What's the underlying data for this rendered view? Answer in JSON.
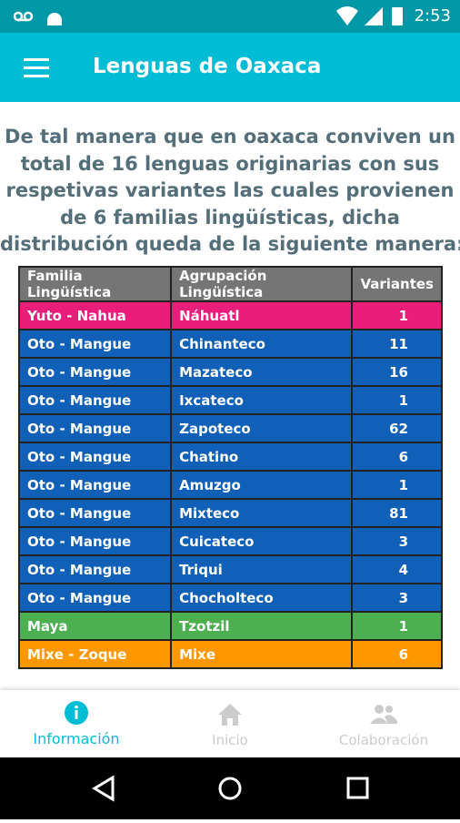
{
  "status_bar": {
    "time": "2:53"
  },
  "app_bar": {
    "title": "Lenguas de Oaxaca"
  },
  "intro": {
    "lines": [
      "De tal manera que en oaxaca conviven un",
      "total de 16 lenguas originarias con sus",
      "respetivas variantes las cuales provienen",
      "de 6 familias lingüísticas, dicha",
      "distribución queda de la siguiente manera:"
    ]
  },
  "table": {
    "headers": [
      "Familia Lingüística",
      "Agrupación Lingüística",
      "Variantes"
    ],
    "rows": [
      {
        "family": "Yuto - Nahua",
        "group": "Náhuatl",
        "variants": 1,
        "color": "#e91e7a"
      },
      {
        "family": "Oto - Mangue",
        "group": "Chinanteco",
        "variants": 11,
        "color": "#1160b8"
      },
      {
        "family": "Oto - Mangue",
        "group": "Mazateco",
        "variants": 16,
        "color": "#1160b8"
      },
      {
        "family": "Oto - Mangue",
        "group": "Ixcateco",
        "variants": 1,
        "color": "#1160b8"
      },
      {
        "family": "Oto - Mangue",
        "group": "Zapoteco",
        "variants": 62,
        "color": "#1160b8"
      },
      {
        "family": "Oto - Mangue",
        "group": "Chatino",
        "variants": 6,
        "color": "#1160b8"
      },
      {
        "family": "Oto - Mangue",
        "group": "Amuzgo",
        "variants": 1,
        "color": "#1160b8"
      },
      {
        "family": "Oto - Mangue",
        "group": "Mixteco",
        "variants": 81,
        "color": "#1160b8"
      },
      {
        "family": "Oto - Mangue",
        "group": "Cuicateco",
        "variants": 3,
        "color": "#1160b8"
      },
      {
        "family": "Oto - Mangue",
        "group": "Triqui",
        "variants": 4,
        "color": "#1160b8"
      },
      {
        "family": "Oto - Mangue",
        "group": "Chocholteco",
        "variants": 3,
        "color": "#1160b8"
      },
      {
        "family": "Maya",
        "group": "Tzotzil",
        "variants": 1,
        "color": "#4caf50"
      },
      {
        "family": "Mixe - Zoque",
        "group": "Mixe",
        "variants": 6,
        "color": "#ff9800"
      }
    ]
  },
  "bottom_nav": {
    "items": [
      "Información",
      "Inicio",
      "Colaboración"
    ]
  }
}
